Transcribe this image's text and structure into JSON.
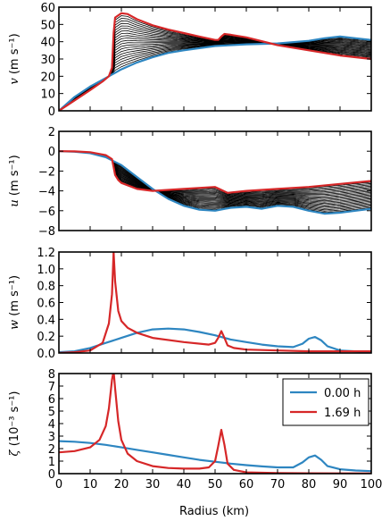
{
  "colors": {
    "series_0h": "#2e86c1",
    "series_169h": "#d62728",
    "hatch": "#000000"
  },
  "legend": {
    "placement": "upper-right of bottom panel",
    "entries": [
      "0.00 h",
      "1.69 h"
    ]
  },
  "x_axis": {
    "label": "Radius (km)",
    "ticks": [
      "0",
      "10",
      "20",
      "30",
      "40",
      "50",
      "60",
      "70",
      "80",
      "90",
      "100"
    ],
    "range": [
      0,
      100
    ]
  },
  "chart_data": [
    {
      "type": "line",
      "ylabel": "v (m s⁻¹)",
      "ylabel_var": "v",
      "ylabel_unit": " (m s⁻¹)",
      "ylim": [
        0,
        60
      ],
      "yticks": [
        "0",
        "10",
        "20",
        "30",
        "40",
        "50",
        "60"
      ],
      "hatched_between_series": true,
      "series": [
        {
          "name": "0.00 h",
          "x": [
            0,
            5,
            10,
            15,
            20,
            25,
            30,
            35,
            40,
            50,
            60,
            70,
            80,
            85,
            90,
            95,
            100
          ],
          "y": [
            0,
            8,
            14,
            19,
            24,
            28,
            31,
            33.5,
            35,
            37.5,
            38.5,
            39,
            40.5,
            42,
            43,
            42,
            41
          ]
        },
        {
          "name": "1.69 h",
          "x": [
            0,
            5,
            10,
            14,
            16,
            17,
            17.5,
            18,
            20,
            22,
            25,
            30,
            35,
            40,
            45,
            50,
            51,
            52,
            53,
            55,
            60,
            70,
            80,
            90,
            100
          ],
          "y": [
            0,
            6,
            12,
            17,
            20,
            25,
            45,
            54,
            56.5,
            56,
            53,
            49.5,
            47,
            45,
            43,
            41,
            41,
            43,
            44.5,
            44,
            42.5,
            38,
            35,
            32,
            30
          ]
        }
      ]
    },
    {
      "type": "line",
      "ylabel": "u (m s⁻¹)",
      "ylabel_var": "u",
      "ylabel_unit": " (m s⁻¹)",
      "ylim": [
        -8,
        2
      ],
      "yticks": [
        "−8",
        "−6",
        "−4",
        "−2",
        "0",
        "2"
      ],
      "hatched_between_series": true,
      "series": [
        {
          "name": "0.00 h",
          "x": [
            0,
            5,
            10,
            15,
            20,
            25,
            30,
            35,
            40,
            45,
            50,
            55,
            60,
            65,
            70,
            75,
            80,
            85,
            90,
            95,
            100
          ],
          "y": [
            0,
            -0.05,
            -0.2,
            -0.6,
            -1.4,
            -2.6,
            -3.8,
            -4.8,
            -5.5,
            -5.9,
            -6.0,
            -5.7,
            -5.6,
            -5.8,
            -5.5,
            -5.6,
            -6.0,
            -6.3,
            -6.2,
            -6.0,
            -5.8
          ]
        },
        {
          "name": "1.69 h",
          "x": [
            0,
            5,
            10,
            15,
            17,
            17.5,
            18,
            19,
            20,
            25,
            30,
            40,
            50,
            52,
            54,
            60,
            70,
            80,
            90,
            100
          ],
          "y": [
            0,
            -0.02,
            -0.1,
            -0.4,
            -0.8,
            -1.6,
            -2.4,
            -2.9,
            -3.2,
            -3.8,
            -4.0,
            -3.8,
            -3.6,
            -3.9,
            -4.2,
            -4.0,
            -3.8,
            -3.6,
            -3.3,
            -3.0
          ]
        }
      ]
    },
    {
      "type": "line",
      "ylabel": "w (m s⁻¹)",
      "ylabel_var": "w",
      "ylabel_unit": " (m s⁻¹)",
      "ylim": [
        0,
        1.2
      ],
      "yticks": [
        "0.0",
        "0.2",
        "0.4",
        "0.6",
        "0.8",
        "1.0",
        "1.2"
      ],
      "hatched_between_series": false,
      "series": [
        {
          "name": "0.00 h",
          "x": [
            0,
            5,
            10,
            15,
            20,
            25,
            30,
            35,
            40,
            45,
            50,
            55,
            60,
            65,
            70,
            75,
            78,
            80,
            82,
            84,
            86,
            90,
            100
          ],
          "y": [
            0.01,
            0.02,
            0.06,
            0.12,
            0.18,
            0.24,
            0.28,
            0.29,
            0.28,
            0.25,
            0.21,
            0.16,
            0.13,
            0.1,
            0.08,
            0.07,
            0.11,
            0.17,
            0.19,
            0.15,
            0.08,
            0.03,
            0.01
          ]
        },
        {
          "name": "1.69 h",
          "x": [
            0,
            5,
            10,
            14,
            16,
            17,
            17.5,
            18,
            19,
            20,
            22,
            25,
            30,
            40,
            48,
            50,
            51,
            52,
            53,
            54,
            56,
            60,
            70,
            80,
            90,
            100
          ],
          "y": [
            0.0,
            0.01,
            0.03,
            0.12,
            0.35,
            0.7,
            1.2,
            0.85,
            0.5,
            0.38,
            0.3,
            0.24,
            0.18,
            0.13,
            0.1,
            0.12,
            0.18,
            0.26,
            0.18,
            0.09,
            0.06,
            0.04,
            0.03,
            0.02,
            0.02,
            0.02
          ]
        }
      ]
    },
    {
      "type": "line",
      "ylabel": "ζ (10⁻³ s⁻¹)",
      "ylabel_var": "ζ",
      "ylabel_unit": " (10⁻³ s⁻¹)",
      "ylim": [
        0,
        8
      ],
      "yticks": [
        "0",
        "1",
        "2",
        "3",
        "4",
        "5",
        "6",
        "7",
        "8"
      ],
      "hatched_between_series": false,
      "series": [
        {
          "name": "0.00 h",
          "x": [
            0,
            5,
            10,
            15,
            20,
            25,
            30,
            35,
            40,
            45,
            50,
            55,
            60,
            65,
            70,
            75,
            78,
            80,
            82,
            84,
            86,
            90,
            95,
            100
          ],
          "y": [
            2.6,
            2.55,
            2.45,
            2.3,
            2.1,
            1.9,
            1.7,
            1.5,
            1.3,
            1.1,
            0.95,
            0.8,
            0.68,
            0.58,
            0.5,
            0.5,
            0.9,
            1.3,
            1.45,
            1.1,
            0.6,
            0.35,
            0.25,
            0.2
          ]
        },
        {
          "name": "1.69 h",
          "x": [
            0,
            5,
            10,
            13,
            15,
            16,
            17,
            17.5,
            18,
            19,
            20,
            22,
            25,
            30,
            35,
            40,
            45,
            48,
            50,
            51,
            52,
            53,
            54,
            56,
            60,
            70,
            80,
            90,
            100
          ],
          "y": [
            1.7,
            1.8,
            2.1,
            2.7,
            3.8,
            5.2,
            7.5,
            8.2,
            6.8,
            4.2,
            2.7,
            1.6,
            1.0,
            0.6,
            0.45,
            0.4,
            0.4,
            0.5,
            1.0,
            2.2,
            3.5,
            2.3,
            0.8,
            0.3,
            0.1,
            0.05,
            0.03,
            0.02,
            0.02
          ]
        }
      ]
    }
  ]
}
